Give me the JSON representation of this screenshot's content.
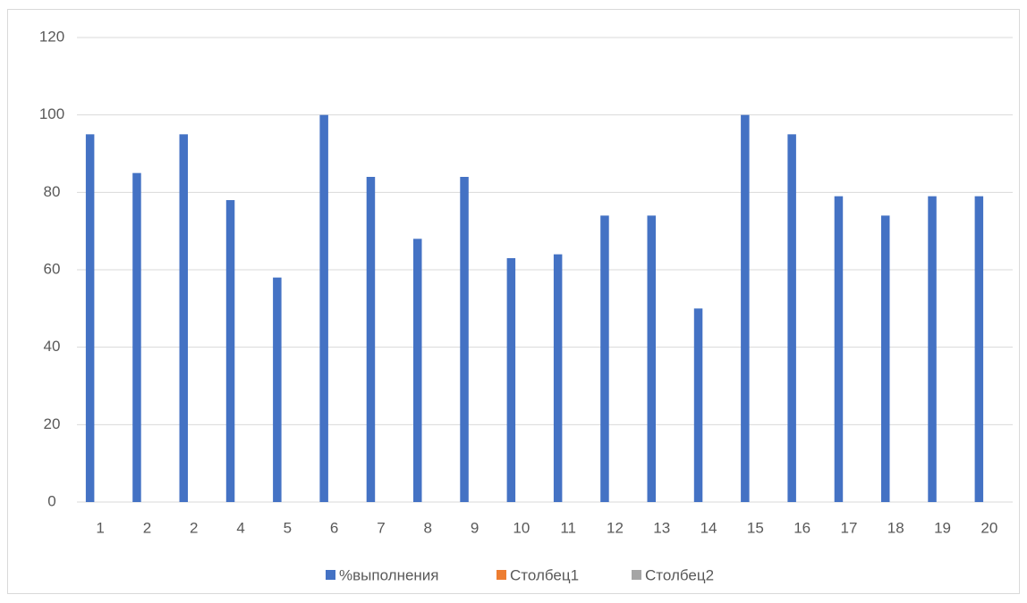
{
  "chart_data": {
    "type": "bar",
    "categories": [
      "1",
      "2",
      "2",
      "4",
      "5",
      "6",
      "7",
      "8",
      "9",
      "10",
      "11",
      "12",
      "13",
      "14",
      "15",
      "16",
      "17",
      "18",
      "19",
      "20"
    ],
    "series": [
      {
        "name": "%выполнения",
        "color": "#4472c4",
        "values": [
          95,
          85,
          95,
          78,
          58,
          100,
          84,
          68,
          84,
          63,
          64,
          74,
          74,
          50,
          100,
          95,
          79,
          74,
          79,
          79
        ]
      },
      {
        "name": "Столбец1",
        "color": "#ed7d31",
        "values": [
          null,
          null,
          null,
          null,
          null,
          null,
          null,
          null,
          null,
          null,
          null,
          null,
          null,
          null,
          null,
          null,
          null,
          null,
          null,
          null
        ]
      },
      {
        "name": "Столбец2",
        "color": "#a5a5a5",
        "values": [
          null,
          null,
          null,
          null,
          null,
          null,
          null,
          null,
          null,
          null,
          null,
          null,
          null,
          null,
          null,
          null,
          null,
          null,
          null,
          null
        ]
      }
    ],
    "ylim": [
      0,
      120
    ],
    "yticks": [
      0,
      20,
      40,
      60,
      80,
      100,
      120
    ],
    "grid": true,
    "legend": "bottom"
  }
}
